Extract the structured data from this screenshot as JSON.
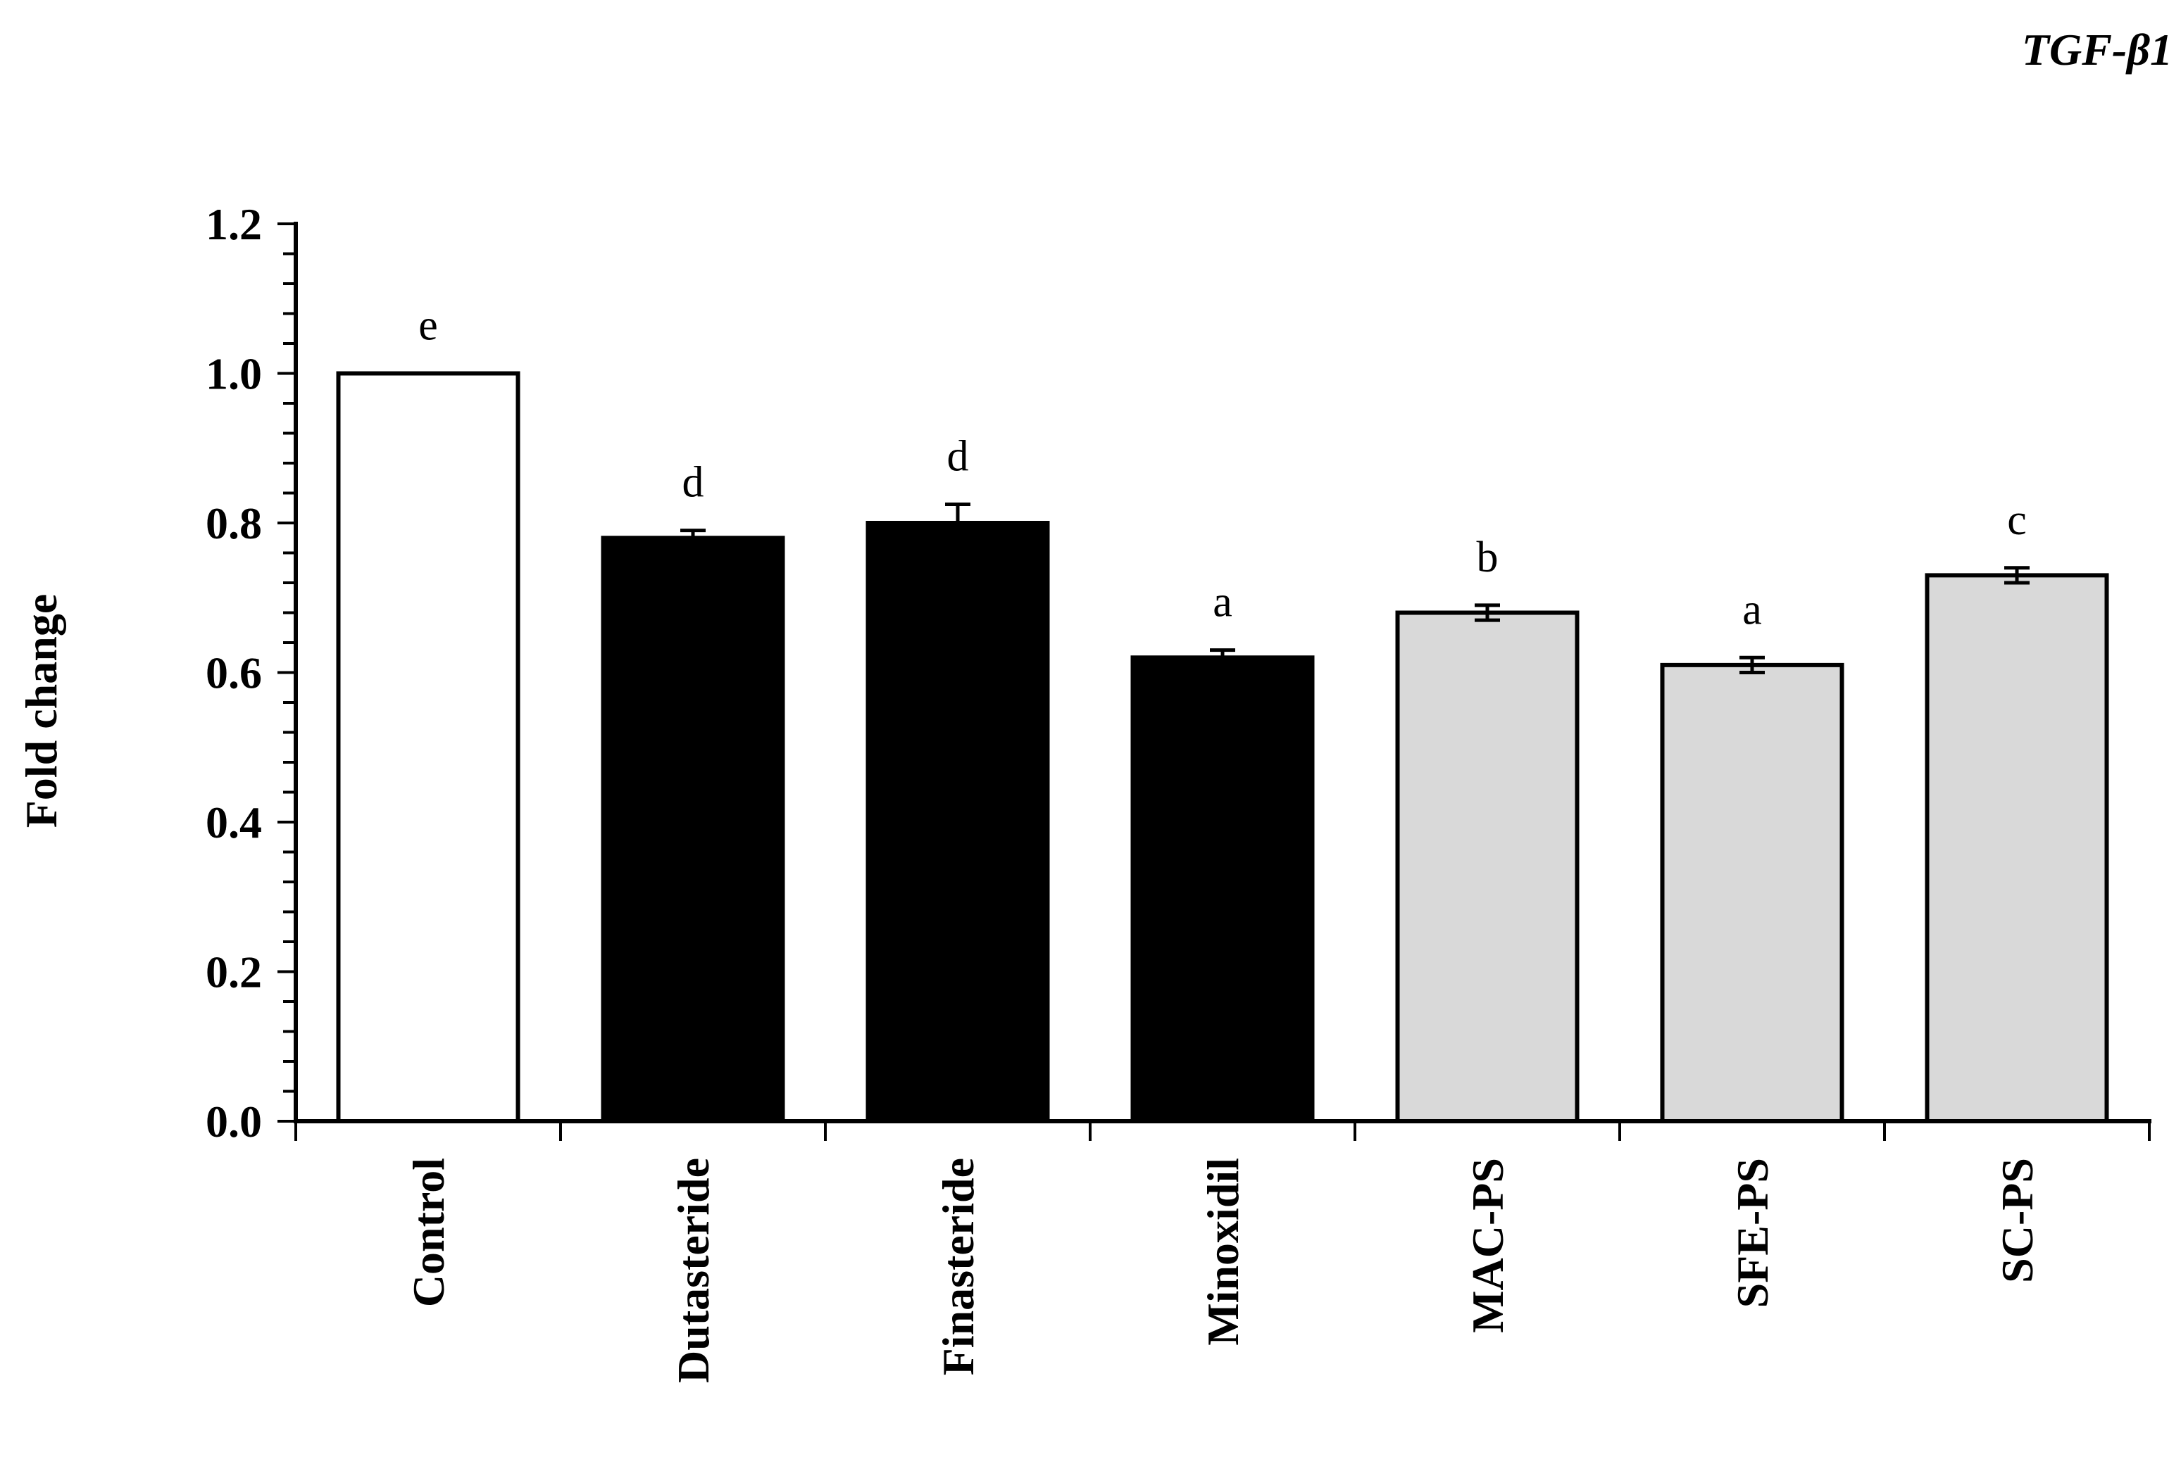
{
  "chart_data": {
    "type": "bar",
    "title": "TGF-β1",
    "xlabel": "",
    "ylabel": "Fold change",
    "ylim": [
      0,
      1.2
    ],
    "yticks": [
      "0.0",
      "0.2",
      "0.4",
      "0.6",
      "0.8",
      "1.0",
      "1.2"
    ],
    "grid": false,
    "categories": [
      "Control",
      "Dutasteride",
      "Finasteride",
      "Minoxidil",
      "MAC-PS",
      "SFE-PS",
      "SC-PS"
    ],
    "values": [
      1.0,
      0.78,
      0.8,
      0.62,
      0.68,
      0.61,
      0.73
    ],
    "errors": [
      0.0,
      0.01,
      0.025,
      0.01,
      0.01,
      0.01,
      0.01
    ],
    "significance": [
      "e",
      "d",
      "d",
      "a",
      "b",
      "a",
      "c"
    ],
    "bar_colors": [
      "#ffffff",
      "#000000",
      "#000000",
      "#000000",
      "#d9d9d9",
      "#d9d9d9",
      "#d9d9d9"
    ]
  }
}
